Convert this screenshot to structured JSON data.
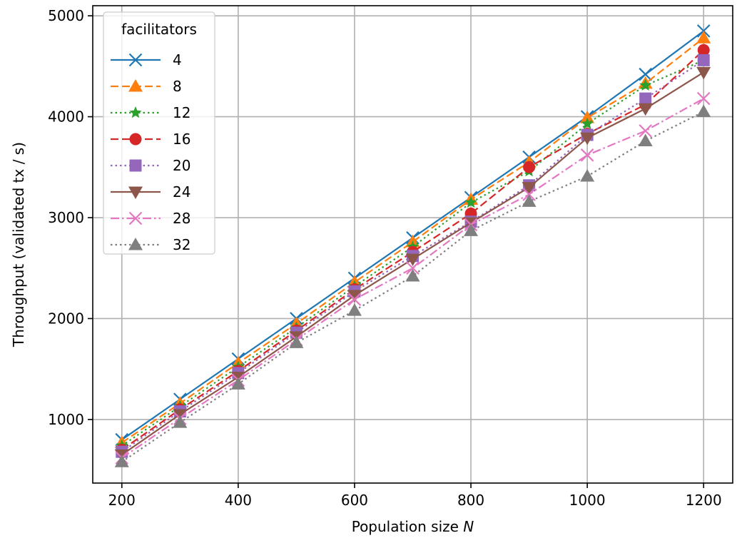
{
  "chart_data": {
    "type": "line",
    "title": "",
    "xlabel": "Population size",
    "xlabel_var": "N",
    "ylabel": "Throughput (validated tx / s)",
    "x": [
      200,
      300,
      400,
      500,
      600,
      700,
      800,
      900,
      1000,
      1100,
      1200
    ],
    "xlim": [
      150,
      1250
    ],
    "ylim": [
      370,
      5100
    ],
    "xticks": [
      200,
      400,
      600,
      800,
      1000,
      1200
    ],
    "yticks": [
      1000,
      2000,
      3000,
      4000,
      5000
    ],
    "grid": true,
    "legend": {
      "title": "facilitators",
      "placement": "top-left"
    },
    "series": [
      {
        "name": "4",
        "color": "#1f77b4",
        "marker": "x-marker",
        "linestyle": "solid",
        "values": [
          800,
          1200,
          1600,
          2000,
          2400,
          2800,
          3200,
          3600,
          4000,
          4420,
          4850
        ]
      },
      {
        "name": "8",
        "color": "#ff7f0e",
        "marker": "triangle-up",
        "linestyle": "dashed",
        "values": [
          770,
          1160,
          1560,
          1950,
          2360,
          2760,
          3180,
          3550,
          3990,
          4330,
          4780
        ]
      },
      {
        "name": "12",
        "color": "#2ca02c",
        "marker": "star",
        "linestyle": "dotted",
        "values": [
          740,
          1130,
          1520,
          1910,
          2320,
          2710,
          3150,
          3460,
          3930,
          4310,
          4560
        ]
      },
      {
        "name": "16",
        "color": "#d62728",
        "marker": "circle",
        "linestyle": "dashed",
        "values": [
          700,
          1100,
          1480,
          1880,
          2290,
          2660,
          3040,
          3500,
          3830,
          4120,
          4660
        ]
      },
      {
        "name": "20",
        "color": "#9467bd",
        "marker": "square",
        "linestyle": "dotted",
        "values": [
          680,
          1080,
          1460,
          1860,
          2270,
          2620,
          2960,
          3320,
          3820,
          4180,
          4560
        ]
      },
      {
        "name": "24",
        "color": "#8c564b",
        "marker": "triangle-down",
        "linestyle": "solid",
        "values": [
          650,
          1050,
          1420,
          1820,
          2230,
          2590,
          2950,
          3300,
          3790,
          4080,
          4440
        ]
      },
      {
        "name": "28",
        "color": "#e377c2",
        "marker": "x-marker",
        "linestyle": "dashdot",
        "values": [
          620,
          1010,
          1390,
          1790,
          2190,
          2500,
          2930,
          3230,
          3620,
          3860,
          4180
        ]
      },
      {
        "name": "32",
        "color": "#7f7f7f",
        "marker": "triangle-up",
        "linestyle": "dotted",
        "values": [
          580,
          970,
          1350,
          1760,
          2080,
          2420,
          2870,
          3160,
          3410,
          3760,
          4050
        ]
      }
    ]
  }
}
